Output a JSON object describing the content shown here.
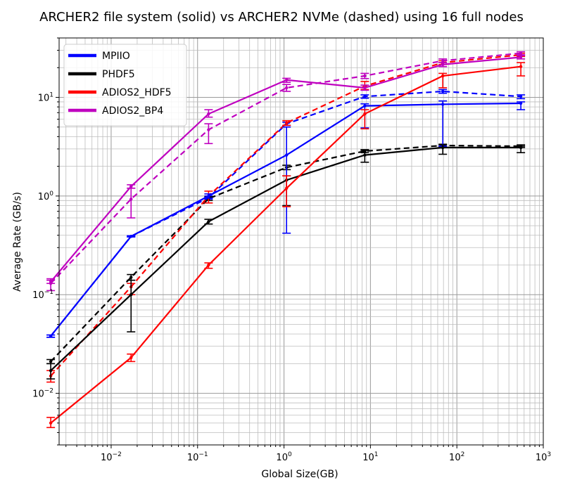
{
  "chart_data": {
    "type": "line",
    "title": "ARCHER2 file system (solid) vs ARCHER2 NVMe (dashed) using 16 full nodes",
    "xlabel": "Global Size(GB)",
    "ylabel": "Average Rate (GB/s)",
    "xscale": "log",
    "yscale": "log",
    "xlim": [
      0.0025,
      1000
    ],
    "ylim": [
      0.003,
      40
    ],
    "grid": "major and minor",
    "legend": "top-left",
    "x": [
      0.002,
      0.017,
      0.134,
      1.07,
      8.6,
      68.7,
      550
    ],
    "x_ticks": [
      {
        "base": "10",
        "exp": "−2"
      },
      {
        "base": "10",
        "exp": "−1"
      },
      {
        "base": "10",
        "exp": "0"
      },
      {
        "base": "10",
        "exp": "1"
      },
      {
        "base": "10",
        "exp": "2"
      },
      {
        "base": "10",
        "exp": "3"
      }
    ],
    "y_ticks": [
      {
        "base": "10",
        "exp": "−2"
      },
      {
        "base": "10",
        "exp": "−1"
      },
      {
        "base": "10",
        "exp": "0"
      },
      {
        "base": "10",
        "exp": "1"
      }
    ],
    "series": [
      {
        "name": "MPIIO",
        "color": "#0000ff",
        "style": "solid",
        "values": [
          0.038,
          0.39,
          1.0,
          2.6,
          8.2,
          8.5,
          8.7
        ],
        "err_low": [
          0.037,
          0.385,
          0.95,
          0.42,
          4.9,
          3.2,
          7.5
        ],
        "err_high": [
          0.039,
          0.395,
          1.05,
          5.0,
          8.6,
          9.2,
          9.0
        ]
      },
      {
        "name": "PHDF5",
        "color": "#000000",
        "style": "solid",
        "values": [
          0.017,
          0.1,
          0.55,
          1.45,
          2.6,
          3.1,
          3.1
        ],
        "err_low": [
          0.014,
          0.042,
          0.52,
          0.8,
          2.2,
          2.65,
          2.75
        ],
        "err_high": [
          0.02,
          0.14,
          0.58,
          1.6,
          2.9,
          3.3,
          3.2
        ]
      },
      {
        "name": "ADIOS2_HDF5",
        "color": "#ff0000",
        "style": "solid",
        "values": [
          0.005,
          0.023,
          0.2,
          1.2,
          6.8,
          16.5,
          20.5
        ],
        "err_low": [
          0.0045,
          0.021,
          0.185,
          0.78,
          4.8,
          12.5,
          16.5
        ],
        "err_high": [
          0.0057,
          0.025,
          0.21,
          1.6,
          7.5,
          17.5,
          22.5
        ]
      },
      {
        "name": "ADIOS2_BP4",
        "color": "#bf00bf",
        "style": "solid",
        "values": [
          0.135,
          1.25,
          6.8,
          15.0,
          12.5,
          21.5,
          25.5
        ],
        "err_low": [
          0.13,
          1.2,
          6.3,
          14.2,
          11.8,
          20.5,
          24.5
        ],
        "err_high": [
          0.14,
          1.3,
          7.5,
          15.6,
          13.3,
          22.5,
          26.5
        ]
      },
      {
        "color": "#0000ff",
        "style": "dashed",
        "values": [
          0.038,
          0.39,
          0.96,
          5.4,
          10.2,
          11.5,
          10.2
        ],
        "err_low": [
          0.037,
          0.385,
          0.93,
          5.2,
          9.8,
          11.0,
          9.7
        ],
        "err_high": [
          0.039,
          0.395,
          1.0,
          5.6,
          10.6,
          12.0,
          10.6
        ]
      },
      {
        "color": "#000000",
        "style": "dashed",
        "values": [
          0.021,
          0.15,
          0.94,
          1.95,
          2.85,
          3.25,
          3.2
        ],
        "err_low": [
          0.02,
          0.14,
          0.9,
          1.85,
          2.75,
          3.15,
          3.1
        ],
        "err_high": [
          0.022,
          0.16,
          0.98,
          2.05,
          2.95,
          3.35,
          3.3
        ]
      },
      {
        "color": "#ff0000",
        "style": "dashed",
        "values": [
          0.015,
          0.12,
          1.0,
          5.5,
          13.0,
          22.5,
          27.0
        ],
        "err_low": [
          0.013,
          0.1,
          0.85,
          5.2,
          12.0,
          21.5,
          26.0
        ],
        "err_high": [
          0.017,
          0.13,
          1.12,
          5.8,
          14.5,
          23.5,
          28.0
        ]
      },
      {
        "color": "#bf00bf",
        "style": "dashed",
        "values": [
          0.13,
          0.93,
          4.7,
          12.5,
          16.5,
          23.5,
          28.0
        ],
        "err_low": [
          0.11,
          0.6,
          3.4,
          11.5,
          15.5,
          22.5,
          27.0
        ],
        "err_high": [
          0.145,
          1.2,
          5.4,
          13.5,
          17.5,
          24.5,
          29.0
        ]
      }
    ]
  }
}
